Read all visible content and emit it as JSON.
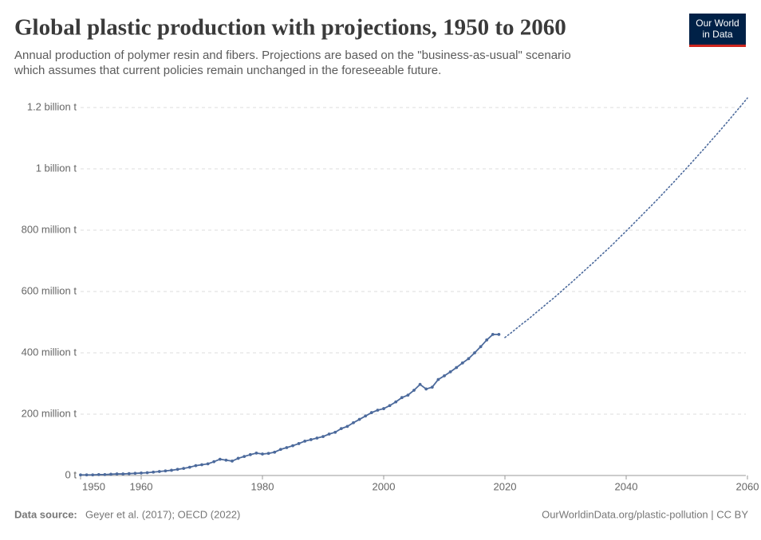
{
  "chart_data": {
    "type": "line",
    "title": "Global plastic production with projections, 1950 to 2060",
    "subtitle": [
      "Annual production of polymer resin and fibers. Projections are based on the \"business-as-usual\" scenario",
      "which assumes that current policies remain unchanged in the foreseeable future."
    ],
    "logo": [
      "Our World",
      "in Data"
    ],
    "source_label": "Data source:",
    "source": "Geyer et al. (2017); OECD (2022)",
    "credit": "OurWorldinData.org/plastic-pollution | CC BY",
    "xlim": [
      1950,
      2060
    ],
    "xticks": [
      1950,
      1960,
      1980,
      2000,
      2020,
      2040,
      2060
    ],
    "ylim": [
      0,
      1240000000
    ],
    "yticks": [
      {
        "value": 0,
        "label": "0 t"
      },
      {
        "value": 200000000,
        "label": "200 million t"
      },
      {
        "value": 400000000,
        "label": "400 million t"
      },
      {
        "value": 600000000,
        "label": "600 million t"
      },
      {
        "value": 800000000,
        "label": "800 million t"
      },
      {
        "value": 1000000000,
        "label": "1 billion t"
      },
      {
        "value": 1200000000,
        "label": "1.2 billion t"
      }
    ],
    "grid": true,
    "series": [
      {
        "color": "#4c6a9c",
        "style": "solid",
        "markers": true,
        "x": [
          1950,
          1951,
          1952,
          1953,
          1954,
          1955,
          1956,
          1957,
          1958,
          1959,
          1960,
          1961,
          1962,
          1963,
          1964,
          1965,
          1966,
          1967,
          1968,
          1969,
          1970,
          1971,
          1972,
          1973,
          1974,
          1975,
          1976,
          1977,
          1978,
          1979,
          1980,
          1981,
          1982,
          1983,
          1984,
          1985,
          1986,
          1987,
          1988,
          1989,
          1990,
          1991,
          1992,
          1993,
          1994,
          1995,
          1996,
          1997,
          1998,
          1999,
          2000,
          2001,
          2002,
          2003,
          2004,
          2005,
          2006,
          2007,
          2008,
          2009,
          2010,
          2011,
          2012,
          2013,
          2014,
          2015,
          2016,
          2017,
          2018,
          2019
        ],
        "values": [
          2000000,
          2000000,
          2000000,
          3000000,
          3000000,
          4000000,
          5000000,
          5000000,
          6000000,
          7000000,
          8000000,
          9000000,
          11000000,
          13000000,
          15000000,
          17000000,
          20000000,
          23000000,
          27000000,
          32000000,
          35000000,
          38000000,
          45000000,
          53000000,
          50000000,
          47000000,
          56000000,
          62000000,
          68000000,
          73000000,
          70000000,
          72000000,
          76000000,
          85000000,
          91000000,
          97000000,
          104000000,
          112000000,
          117000000,
          122000000,
          127000000,
          135000000,
          141000000,
          153000000,
          160000000,
          172000000,
          183000000,
          194000000,
          205000000,
          213000000,
          218000000,
          228000000,
          240000000,
          254000000,
          262000000,
          278000000,
          297000000,
          282000000,
          288000000,
          313000000,
          325000000,
          338000000,
          352000000,
          367000000,
          381000000,
          400000000,
          420000000,
          442000000,
          460000000,
          460000000
        ]
      },
      {
        "color": "#4c6a9c",
        "style": "dotted",
        "markers": false,
        "x": [
          2020,
          2021,
          2022,
          2023,
          2024,
          2025,
          2026,
          2027,
          2028,
          2029,
          2030,
          2031,
          2032,
          2033,
          2034,
          2035,
          2036,
          2037,
          2038,
          2039,
          2040,
          2041,
          2042,
          2043,
          2044,
          2045,
          2046,
          2047,
          2048,
          2049,
          2050,
          2051,
          2052,
          2053,
          2054,
          2055,
          2056,
          2057,
          2058,
          2059,
          2060
        ],
        "values": [
          450000000,
          465000000,
          481000000,
          497000000,
          512000000,
          529000000,
          545000000,
          562000000,
          578000000,
          595000000,
          613000000,
          630000000,
          648000000,
          666000000,
          684000000,
          702000000,
          721000000,
          739000000,
          758000000,
          778000000,
          797000000,
          817000000,
          837000000,
          857000000,
          877000000,
          897000000,
          918000000,
          939000000,
          960000000,
          982000000,
          1003000000,
          1025000000,
          1047000000,
          1069000000,
          1092000000,
          1114000000,
          1137000000,
          1160000000,
          1184000000,
          1207000000,
          1231000000
        ]
      }
    ]
  }
}
